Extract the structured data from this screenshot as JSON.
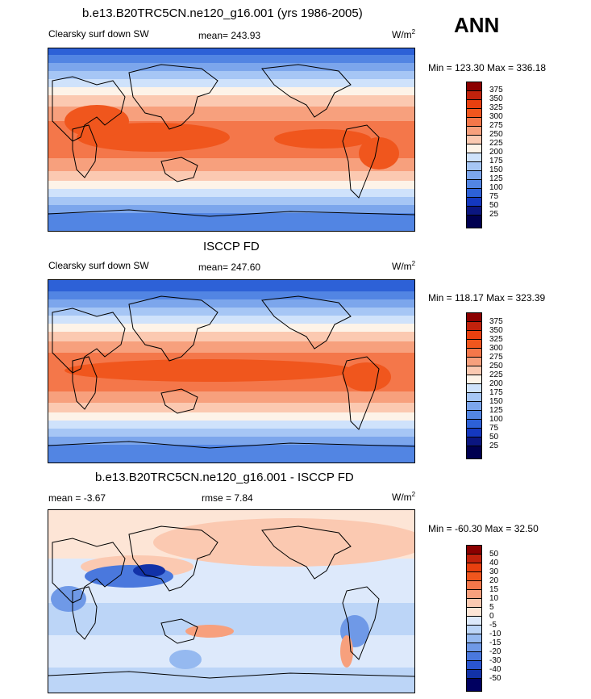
{
  "season": "ANN",
  "units_base": "W/m",
  "units_exp": "2",
  "panels": [
    {
      "title": "b.e13.B20TRC5CN.ne120_g16.001 (yrs 1986-2005)",
      "variable": "Clearsky surf down SW",
      "mean": "mean= 243.93",
      "minmax": "Min = 123.30 Max = 336.18",
      "levels": [
        "375",
        "350",
        "325",
        "300",
        "275",
        "250",
        "225",
        "200",
        "175",
        "150",
        "125",
        "100",
        "75",
        "50",
        "25"
      ]
    },
    {
      "title": "ISCCP FD",
      "variable": "Clearsky surf down SW",
      "mean": "mean= 247.60",
      "minmax": "Min = 118.17 Max = 323.39",
      "levels": [
        "375",
        "350",
        "325",
        "300",
        "275",
        "250",
        "225",
        "200",
        "175",
        "150",
        "125",
        "100",
        "75",
        "50",
        "25"
      ]
    },
    {
      "title": "b.e13.B20TRC5CN.ne120_g16.001 - ISCCP FD",
      "mean": "mean =  -3.67",
      "rmse": "rmse =   7.84",
      "minmax": "Min = -60.30 Max =  32.50",
      "levels": [
        "50",
        "40",
        "30",
        "20",
        "15",
        "10",
        "5",
        "0",
        "-5",
        "-10",
        "-15",
        "-20",
        "-30",
        "-40",
        "-50"
      ]
    }
  ],
  "colors": {
    "abs_scale": [
      "#8b0000",
      "#c1220c",
      "#e8400f",
      "#f0561d",
      "#f4774a",
      "#f7a07d",
      "#fbc9b1",
      "#fdf3e8",
      "#cfe2fb",
      "#a6c6f5",
      "#7ca6ec",
      "#5285e3",
      "#2d61d7",
      "#1438bf",
      "#0b1680",
      "#000050"
    ],
    "diff_scale": [
      "#8b0000",
      "#c1220c",
      "#e8400f",
      "#f0561d",
      "#f4774a",
      "#f7a07d",
      "#fbc9b1",
      "#fde5d6",
      "#dde9fb",
      "#bcd5f7",
      "#95b9f0",
      "#6f99e7",
      "#4a78dd",
      "#2a55cf",
      "#1232a8",
      "#000060"
    ]
  }
}
